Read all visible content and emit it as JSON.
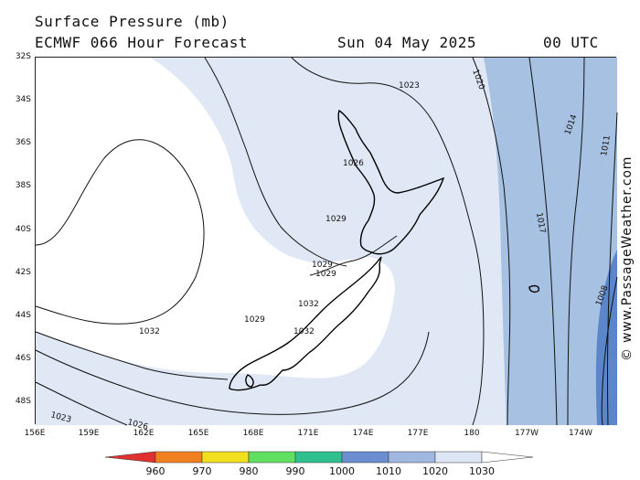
{
  "header": {
    "title": "Surface Pressure (mb)",
    "subtitle": "ECMWF 066 Hour Forecast",
    "date": "Sun 04 May 2025",
    "time": "00 UTC"
  },
  "map": {
    "lat_ticks": [
      "32S",
      "34S",
      "36S",
      "38S",
      "40S",
      "42S",
      "44S",
      "46S",
      "48S"
    ],
    "lon_ticks": [
      "156E",
      "159E",
      "162E",
      "165E",
      "168E",
      "171E",
      "174E",
      "177E",
      "180",
      "177W",
      "174W"
    ],
    "isobar_labels": [
      "1020",
      "1023",
      "1026",
      "1029",
      "1029",
      "1029",
      "1029",
      "1032",
      "1032",
      "1032",
      "1014",
      "1017",
      "1011",
      "1008",
      "1023",
      "1026"
    ],
    "colors": {
      "band_1000_1010": "#5b86c9",
      "band_1010_1020": "#a7c1e2",
      "band_1020_1030": "#e0e8f5",
      "band_1030_plus": "#ffffff",
      "land_outline": "#000000"
    }
  },
  "legend": {
    "ticks": [
      "960",
      "970",
      "980",
      "990",
      "1000",
      "1010",
      "1020",
      "1030"
    ],
    "colors": [
      "#e03030",
      "#f08020",
      "#f0e020",
      "#60e060",
      "#30c090",
      "#6a8ed0",
      "#a0b8e0",
      "#dde6f4",
      "#ffffff"
    ]
  },
  "watermark": "© www.PassageWeather.com"
}
